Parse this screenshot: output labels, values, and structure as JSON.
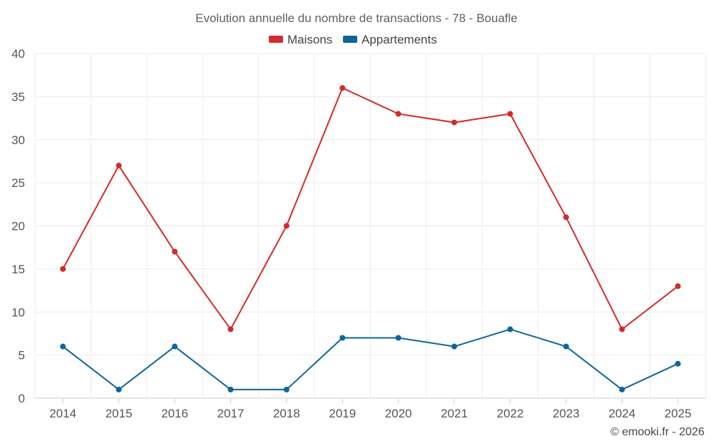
{
  "chart_data": {
    "type": "line",
    "title": "Evolution annuelle du nombre de transactions - 78 - Bouafle",
    "categories": [
      "2014",
      "2015",
      "2016",
      "2017",
      "2018",
      "2019",
      "2020",
      "2021",
      "2022",
      "2023",
      "2024",
      "2025"
    ],
    "series": [
      {
        "name": "Maisons",
        "color": "#d32a2a",
        "values": [
          15,
          27,
          17,
          8,
          20,
          36,
          33,
          32,
          33,
          21,
          8,
          13
        ]
      },
      {
        "name": "Appartements",
        "color": "#0e6599",
        "values": [
          6,
          1,
          6,
          1,
          1,
          7,
          7,
          6,
          8,
          6,
          1,
          4
        ]
      }
    ],
    "ylim": [
      0,
      40
    ],
    "yticks": [
      "0",
      "5",
      "10",
      "15",
      "20",
      "25",
      "30",
      "35",
      "40"
    ],
    "xlabel": "",
    "ylabel": "",
    "grid": true,
    "legend_position": "top-center",
    "credit": "© emooki.fr - 2026"
  }
}
